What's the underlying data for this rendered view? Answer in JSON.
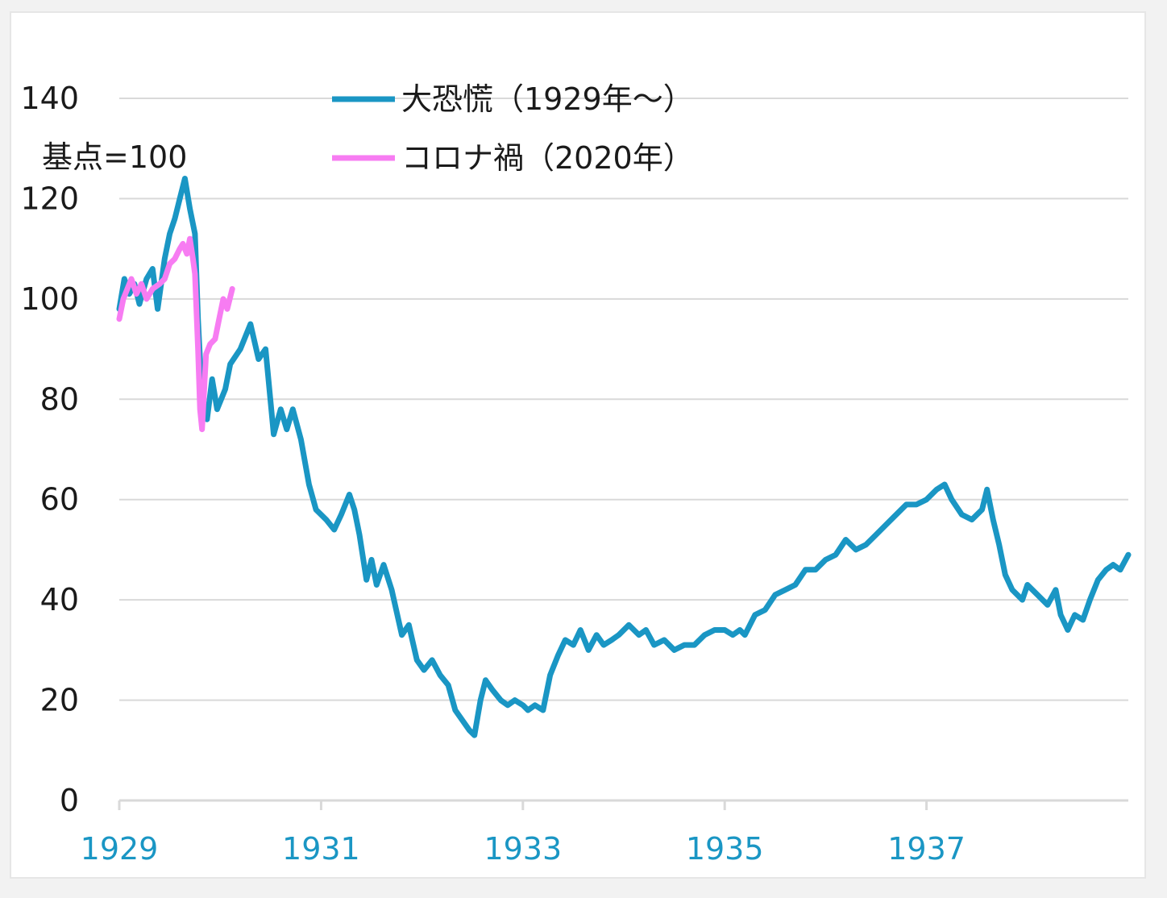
{
  "chart_data": {
    "type": "line",
    "title": "",
    "unit_label": "基点=100",
    "xlabel": "",
    "ylabel": "",
    "ylim": [
      0,
      140
    ],
    "xlim": [
      1929.0,
      1939.0
    ],
    "yticks": [
      "0",
      "20",
      "40",
      "60",
      "80",
      "100",
      "120",
      "140"
    ],
    "xticks": [
      "1929",
      "1931",
      "1933",
      "1935",
      "1937"
    ],
    "grid": true,
    "legend_position": "top-center",
    "axis_tick_color": "#1a96c4",
    "grid_color": "#d9d9d9",
    "series": [
      {
        "name": "大恐慌（1929年～）",
        "color": "#1a96c4",
        "points": [
          [
            1929.0,
            98
          ],
          [
            1929.05,
            104
          ],
          [
            1929.1,
            101
          ],
          [
            1929.15,
            103
          ],
          [
            1929.2,
            99
          ],
          [
            1929.27,
            104
          ],
          [
            1929.33,
            106
          ],
          [
            1929.38,
            98
          ],
          [
            1929.45,
            108
          ],
          [
            1929.5,
            113
          ],
          [
            1929.55,
            116
          ],
          [
            1929.6,
            120
          ],
          [
            1929.65,
            124
          ],
          [
            1929.7,
            118
          ],
          [
            1929.75,
            113
          ],
          [
            1929.78,
            96
          ],
          [
            1929.82,
            80
          ],
          [
            1929.87,
            76
          ],
          [
            1929.92,
            84
          ],
          [
            1929.97,
            78
          ],
          [
            1930.05,
            82
          ],
          [
            1930.1,
            87
          ],
          [
            1930.2,
            90
          ],
          [
            1930.3,
            95
          ],
          [
            1930.38,
            88
          ],
          [
            1930.45,
            90
          ],
          [
            1930.53,
            73
          ],
          [
            1930.6,
            78
          ],
          [
            1930.66,
            74
          ],
          [
            1930.72,
            78
          ],
          [
            1930.8,
            72
          ],
          [
            1930.88,
            63
          ],
          [
            1930.95,
            58
          ],
          [
            1931.05,
            56
          ],
          [
            1931.13,
            54
          ],
          [
            1931.2,
            57
          ],
          [
            1931.28,
            61
          ],
          [
            1931.33,
            58
          ],
          [
            1931.38,
            53
          ],
          [
            1931.45,
            44
          ],
          [
            1931.5,
            48
          ],
          [
            1931.55,
            43
          ],
          [
            1931.62,
            47
          ],
          [
            1931.7,
            42
          ],
          [
            1931.8,
            33
          ],
          [
            1931.87,
            35
          ],
          [
            1931.95,
            28
          ],
          [
            1932.02,
            26
          ],
          [
            1932.1,
            28
          ],
          [
            1932.18,
            25
          ],
          [
            1932.26,
            23
          ],
          [
            1932.33,
            18
          ],
          [
            1932.4,
            16
          ],
          [
            1932.47,
            14
          ],
          [
            1932.52,
            13
          ],
          [
            1932.58,
            20
          ],
          [
            1932.63,
            24
          ],
          [
            1932.7,
            22
          ],
          [
            1932.78,
            20
          ],
          [
            1932.85,
            19
          ],
          [
            1932.92,
            20
          ],
          [
            1933.0,
            19
          ],
          [
            1933.05,
            18
          ],
          [
            1933.12,
            19
          ],
          [
            1933.2,
            18
          ],
          [
            1933.27,
            25
          ],
          [
            1933.35,
            29
          ],
          [
            1933.42,
            32
          ],
          [
            1933.5,
            31
          ],
          [
            1933.57,
            34
          ],
          [
            1933.65,
            30
          ],
          [
            1933.73,
            33
          ],
          [
            1933.8,
            31
          ],
          [
            1933.88,
            32
          ],
          [
            1933.95,
            33
          ],
          [
            1934.05,
            35
          ],
          [
            1934.15,
            33
          ],
          [
            1934.22,
            34
          ],
          [
            1934.3,
            31
          ],
          [
            1934.4,
            32
          ],
          [
            1934.5,
            30
          ],
          [
            1934.6,
            31
          ],
          [
            1934.7,
            31
          ],
          [
            1934.8,
            33
          ],
          [
            1934.9,
            34
          ],
          [
            1935.0,
            34
          ],
          [
            1935.08,
            33
          ],
          [
            1935.15,
            34
          ],
          [
            1935.2,
            33
          ],
          [
            1935.3,
            37
          ],
          [
            1935.4,
            38
          ],
          [
            1935.5,
            41
          ],
          [
            1935.6,
            42
          ],
          [
            1935.7,
            43
          ],
          [
            1935.8,
            46
          ],
          [
            1935.9,
            46
          ],
          [
            1936.0,
            48
          ],
          [
            1936.1,
            49
          ],
          [
            1936.2,
            52
          ],
          [
            1936.3,
            50
          ],
          [
            1936.4,
            51
          ],
          [
            1936.5,
            53
          ],
          [
            1936.6,
            55
          ],
          [
            1936.7,
            57
          ],
          [
            1936.8,
            59
          ],
          [
            1936.9,
            59
          ],
          [
            1937.0,
            60
          ],
          [
            1937.1,
            62
          ],
          [
            1937.18,
            63
          ],
          [
            1937.25,
            60
          ],
          [
            1937.35,
            57
          ],
          [
            1937.45,
            56
          ],
          [
            1937.55,
            58
          ],
          [
            1937.6,
            62
          ],
          [
            1937.66,
            56
          ],
          [
            1937.72,
            51
          ],
          [
            1937.78,
            45
          ],
          [
            1937.85,
            42
          ],
          [
            1937.95,
            40
          ],
          [
            1938.0,
            43
          ],
          [
            1938.1,
            41
          ],
          [
            1938.2,
            39
          ],
          [
            1938.28,
            42
          ],
          [
            1938.33,
            37
          ],
          [
            1938.4,
            34
          ],
          [
            1938.47,
            37
          ],
          [
            1938.55,
            36
          ],
          [
            1938.62,
            40
          ],
          [
            1938.7,
            44
          ],
          [
            1938.78,
            46
          ],
          [
            1938.85,
            47
          ],
          [
            1938.92,
            46
          ],
          [
            1939.0,
            49
          ]
        ]
      },
      {
        "name": "コロナ禍（2020年）",
        "color": "#f77cf2",
        "points": [
          [
            1929.0,
            96
          ],
          [
            1929.04,
            100
          ],
          [
            1929.08,
            102
          ],
          [
            1929.12,
            104
          ],
          [
            1929.17,
            101
          ],
          [
            1929.22,
            103
          ],
          [
            1929.27,
            100
          ],
          [
            1929.33,
            102
          ],
          [
            1929.4,
            103
          ],
          [
            1929.45,
            104
          ],
          [
            1929.5,
            107
          ],
          [
            1929.55,
            108
          ],
          [
            1929.6,
            110
          ],
          [
            1929.63,
            111
          ],
          [
            1929.67,
            109
          ],
          [
            1929.7,
            112
          ],
          [
            1929.73,
            108
          ],
          [
            1929.75,
            105
          ],
          [
            1929.78,
            90
          ],
          [
            1929.8,
            78
          ],
          [
            1929.82,
            74
          ],
          [
            1929.86,
            89
          ],
          [
            1929.9,
            91
          ],
          [
            1929.95,
            92
          ],
          [
            1929.99,
            96
          ],
          [
            1930.03,
            100
          ],
          [
            1930.07,
            98
          ],
          [
            1930.12,
            102
          ]
        ]
      }
    ]
  }
}
